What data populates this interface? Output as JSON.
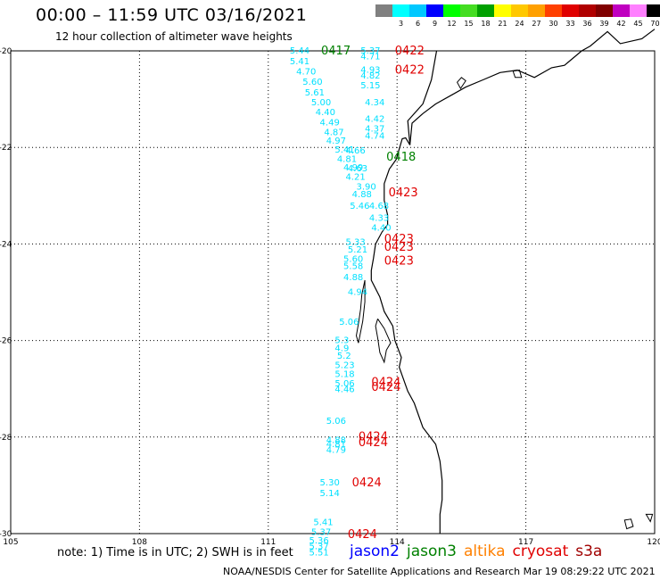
{
  "header": {
    "title": "00:00 – 11:59 UTC 03/16/2021",
    "subtitle": "12 hour collection of altimeter wave heights"
  },
  "color_scale": {
    "unit": "(ft)",
    "swatches": [
      {
        "label": "",
        "color": "#808080"
      },
      {
        "label": "3",
        "color": "#00ffff"
      },
      {
        "label": "6",
        "color": "#00c8ff"
      },
      {
        "label": "9",
        "color": "#0000ff"
      },
      {
        "label": "12",
        "color": "#00ff00"
      },
      {
        "label": "15",
        "color": "#44dd22"
      },
      {
        "label": "18",
        "color": "#00a000"
      },
      {
        "label": "21",
        "color": "#ffff00"
      },
      {
        "label": "24",
        "color": "#ffc800"
      },
      {
        "label": "27",
        "color": "#ffa000"
      },
      {
        "label": "30",
        "color": "#ff4000"
      },
      {
        "label": "33",
        "color": "#e00000"
      },
      {
        "label": "36",
        "color": "#b00000"
      },
      {
        "label": "39",
        "color": "#800000"
      },
      {
        "label": "42",
        "color": "#c000c0"
      },
      {
        "label": "45",
        "color": "#ff80ff"
      },
      {
        "label": "70",
        "color": "#000000"
      }
    ]
  },
  "axes": {
    "lon_ticks": [
      "105",
      "108",
      "111",
      "114",
      "117",
      "120"
    ],
    "lat_ticks": [
      "-20",
      "-22",
      "-24",
      "-26",
      "-28",
      "-30"
    ]
  },
  "observations": [
    {
      "v": "5.44",
      "lon": 111.5,
      "lat": -19.98
    },
    {
      "v": "5.41",
      "lon": 111.5,
      "lat": -20.2
    },
    {
      "v": "4.70",
      "lon": 111.65,
      "lat": -20.42
    },
    {
      "v": "5.60",
      "lon": 111.8,
      "lat": -20.63
    },
    {
      "v": "5.61",
      "lon": 111.85,
      "lat": -20.85
    },
    {
      "v": "5.00",
      "lon": 112.0,
      "lat": -21.05
    },
    {
      "v": "4.40",
      "lon": 112.1,
      "lat": -21.26
    },
    {
      "v": "4.49",
      "lon": 112.2,
      "lat": -21.47
    },
    {
      "v": "4.87",
      "lon": 112.3,
      "lat": -21.67
    },
    {
      "v": "4.97",
      "lon": 112.35,
      "lat": -21.85
    },
    {
      "v": "5.41",
      "lon": 112.55,
      "lat": -22.03
    },
    {
      "v": "4.81",
      "lon": 112.6,
      "lat": -22.23
    },
    {
      "v": "4.99",
      "lon": 112.75,
      "lat": -22.4
    },
    {
      "v": "4.21",
      "lon": 112.8,
      "lat": -22.6
    },
    {
      "v": "3.90",
      "lon": 113.05,
      "lat": -22.8
    },
    {
      "v": "4.88",
      "lon": 112.95,
      "lat": -22.96
    },
    {
      "v": "5.46",
      "lon": 112.9,
      "lat": -23.2
    },
    {
      "v": "4.68",
      "lon": 113.35,
      "lat": -23.2
    },
    {
      "v": "4.33",
      "lon": 113.35,
      "lat": -23.45
    },
    {
      "v": "4.40",
      "lon": 113.4,
      "lat": -23.65
    },
    {
      "v": "5.33",
      "lon": 112.8,
      "lat": -23.95
    },
    {
      "v": "5.21",
      "lon": 112.85,
      "lat": -24.1
    },
    {
      "v": "5.60",
      "lon": 112.75,
      "lat": -24.3
    },
    {
      "v": "5.58",
      "lon": 112.75,
      "lat": -24.45
    },
    {
      "v": "4.88",
      "lon": 112.75,
      "lat": -24.68
    },
    {
      "v": "4.94",
      "lon": 112.85,
      "lat": -24.98
    },
    {
      "v": "5.06",
      "lon": 112.65,
      "lat": -25.6
    },
    {
      "v": "5.3",
      "lon": 112.55,
      "lat": -25.98
    },
    {
      "v": "4.9",
      "lon": 112.55,
      "lat": -26.15
    },
    {
      "v": "5.2",
      "lon": 112.6,
      "lat": -26.3
    },
    {
      "v": "5.23",
      "lon": 112.55,
      "lat": -26.5
    },
    {
      "v": "5.18",
      "lon": 112.55,
      "lat": -26.68
    },
    {
      "v": "5.06",
      "lon": 112.55,
      "lat": -26.88
    },
    {
      "v": "4.46",
      "lon": 112.55,
      "lat": -27.0
    },
    {
      "v": "5.06",
      "lon": 112.35,
      "lat": -27.65
    },
    {
      "v": "4.88",
      "lon": 112.35,
      "lat": -28.05
    },
    {
      "v": "4.81",
      "lon": 112.35,
      "lat": -28.13
    },
    {
      "v": "4.79",
      "lon": 112.35,
      "lat": -28.25
    },
    {
      "v": "5.30",
      "lon": 112.2,
      "lat": -28.93
    },
    {
      "v": "5.14",
      "lon": 112.2,
      "lat": -29.15
    },
    {
      "v": "5.41",
      "lon": 112.05,
      "lat": -29.75
    },
    {
      "v": "5.37",
      "lon": 112.0,
      "lat": -29.95
    },
    {
      "v": "5.36",
      "lon": 111.95,
      "lat": -30.13
    },
    {
      "v": "5.37",
      "lon": 111.95,
      "lat": -30.25
    },
    {
      "v": "5.51",
      "lon": 111.95,
      "lat": -30.38
    },
    {
      "v": "5.37",
      "lon": 113.15,
      "lat": -19.98
    },
    {
      "v": "4.71",
      "lon": 113.15,
      "lat": -20.1
    },
    {
      "v": "4.93",
      "lon": 113.15,
      "lat": -20.38
    },
    {
      "v": "4.82",
      "lon": 113.15,
      "lat": -20.5
    },
    {
      "v": "5.15",
      "lon": 113.15,
      "lat": -20.7
    },
    {
      "v": "4.34",
      "lon": 113.25,
      "lat": -21.05
    },
    {
      "v": "4.42",
      "lon": 113.25,
      "lat": -21.4
    },
    {
      "v": "4.37",
      "lon": 113.25,
      "lat": -21.6
    },
    {
      "v": "4.74",
      "lon": 113.25,
      "lat": -21.75
    },
    {
      "v": "4.66",
      "lon": 112.8,
      "lat": -22.05
    },
    {
      "v": "4.63",
      "lon": 112.85,
      "lat": -22.42
    }
  ],
  "passes": [
    {
      "label": "0417",
      "lon": 112.23,
      "lat": -19.98,
      "sat": "jason3"
    },
    {
      "label": "0422",
      "lon": 113.95,
      "lat": -19.98,
      "sat": "cryosat"
    },
    {
      "label": "0422",
      "lon": 113.95,
      "lat": -20.38,
      "sat": "cryosat"
    },
    {
      "label": "0418",
      "lon": 113.75,
      "lat": -22.18,
      "sat": "jason3"
    },
    {
      "label": "0423",
      "lon": 113.8,
      "lat": -22.92,
      "sat": "cryosat"
    },
    {
      "label": "0423",
      "lon": 113.7,
      "lat": -23.88,
      "sat": "cryosat"
    },
    {
      "label": "0423",
      "lon": 113.7,
      "lat": -24.05,
      "sat": "cryosat"
    },
    {
      "label": "0423",
      "lon": 113.7,
      "lat": -24.33,
      "sat": "cryosat"
    },
    {
      "label": "0424",
      "lon": 113.4,
      "lat": -26.85,
      "sat": "cryosat"
    },
    {
      "label": "0424",
      "lon": 113.4,
      "lat": -26.95,
      "sat": "cryosat"
    },
    {
      "label": "0424",
      "lon": 113.1,
      "lat": -27.98,
      "sat": "cryosat"
    },
    {
      "label": "0424",
      "lon": 113.1,
      "lat": -28.1,
      "sat": "cryosat"
    },
    {
      "label": "0424",
      "lon": 112.95,
      "lat": -28.93,
      "sat": "cryosat"
    },
    {
      "label": "0424",
      "lon": 112.85,
      "lat": -30.0,
      "sat": "cryosat"
    }
  ],
  "coastline": [
    [
      114.92,
      -20.0
    ],
    [
      114.8,
      -20.6
    ],
    [
      114.6,
      -21.1
    ],
    [
      114.25,
      -21.45
    ],
    [
      114.3,
      -21.95
    ],
    [
      114.2,
      -21.8
    ],
    [
      114.12,
      -21.82
    ],
    [
      113.98,
      -22.25
    ],
    [
      113.82,
      -22.45
    ],
    [
      113.7,
      -22.75
    ],
    [
      113.7,
      -23.1
    ],
    [
      113.78,
      -23.4
    ],
    [
      113.78,
      -23.6
    ],
    [
      113.65,
      -23.75
    ],
    [
      113.5,
      -24.0
    ],
    [
      113.45,
      -24.3
    ],
    [
      113.4,
      -24.55
    ],
    [
      113.4,
      -24.75
    ],
    [
      113.6,
      -25.1
    ],
    [
      113.7,
      -25.4
    ],
    [
      113.9,
      -25.7
    ],
    [
      113.95,
      -26.0
    ],
    [
      114.1,
      -26.35
    ],
    [
      114.05,
      -26.55
    ],
    [
      114.15,
      -26.8
    ],
    [
      114.25,
      -27.05
    ],
    [
      114.4,
      -27.3
    ],
    [
      114.6,
      -27.8
    ],
    [
      114.9,
      -28.15
    ],
    [
      115.0,
      -28.5
    ],
    [
      115.05,
      -28.9
    ],
    [
      115.05,
      -29.3
    ],
    [
      115.0,
      -29.6
    ],
    [
      115.0,
      -30.0
    ]
  ],
  "coastline2": [
    [
      114.3,
      -21.95
    ],
    [
      114.35,
      -21.5
    ],
    [
      114.6,
      -21.3
    ],
    [
      114.9,
      -21.1
    ],
    [
      115.3,
      -20.9
    ],
    [
      115.6,
      -20.75
    ],
    [
      116.0,
      -20.6
    ],
    [
      116.4,
      -20.45
    ],
    [
      116.8,
      -20.4
    ],
    [
      117.2,
      -20.55
    ],
    [
      117.6,
      -20.35
    ],
    [
      117.9,
      -20.3
    ],
    [
      118.3,
      -20.0
    ],
    [
      118.5,
      -19.9
    ],
    [
      118.9,
      -19.6
    ],
    [
      119.2,
      -19.85
    ],
    [
      119.7,
      -19.75
    ],
    [
      120.0,
      -19.55
    ]
  ],
  "shark_bay": [
    [
      113.55,
      -25.55
    ],
    [
      113.7,
      -25.75
    ],
    [
      113.85,
      -26.05
    ],
    [
      113.75,
      -26.2
    ],
    [
      113.7,
      -26.45
    ],
    [
      113.6,
      -26.25
    ],
    [
      113.55,
      -25.95
    ],
    [
      113.5,
      -25.7
    ],
    [
      113.55,
      -25.55
    ]
  ],
  "islands": [
    [
      [
        113.25,
        -24.75
      ],
      [
        113.18,
        -25.05
      ],
      [
        113.15,
        -25.35
      ],
      [
        113.1,
        -25.65
      ],
      [
        113.05,
        -25.9
      ],
      [
        113.1,
        -26.05
      ],
      [
        113.2,
        -25.6
      ],
      [
        113.25,
        -25.2
      ],
      [
        113.25,
        -24.75
      ]
    ],
    [
      [
        115.4,
        -20.65
      ],
      [
        115.5,
        -20.55
      ],
      [
        115.6,
        -20.62
      ],
      [
        115.48,
        -20.78
      ],
      [
        115.4,
        -20.65
      ]
    ],
    [
      [
        116.7,
        -20.42
      ],
      [
        116.85,
        -20.4
      ],
      [
        116.9,
        -20.55
      ],
      [
        116.75,
        -20.55
      ],
      [
        116.7,
        -20.42
      ]
    ],
    [
      [
        119.3,
        -29.72
      ],
      [
        119.45,
        -29.7
      ],
      [
        119.5,
        -29.85
      ],
      [
        119.35,
        -29.9
      ],
      [
        119.3,
        -29.72
      ]
    ],
    [
      [
        119.8,
        -29.6
      ],
      [
        119.95,
        -29.6
      ],
      [
        119.9,
        -29.75
      ],
      [
        119.8,
        -29.6
      ]
    ]
  ],
  "footer": {
    "note": "note: 1) Time is in UTC; 2) SWH is in feet",
    "credit": "NOAA/NESDIS Center for Satellite Applications and Research    Mar 19 08:29:22 UTC 2021"
  },
  "legend_sats": [
    {
      "name": "jason2",
      "color": "#0000ff"
    },
    {
      "name": "jason3",
      "color": "#008000"
    },
    {
      "name": "altika",
      "color": "#ff8000"
    },
    {
      "name": "cryosat",
      "color": "#e00000"
    },
    {
      "name": "s3a",
      "color": "#a00000"
    }
  ],
  "colors": {
    "obs": "#00e0ff",
    "jason3": "#008000",
    "cryosat": "#e00000",
    "grid": "#000000"
  }
}
